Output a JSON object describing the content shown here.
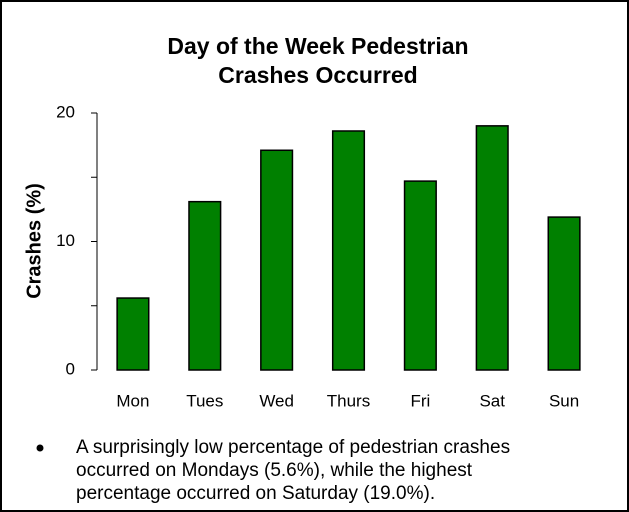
{
  "chart_data": {
    "type": "bar",
    "title_lines": [
      "Day of the Week Pedestrian",
      "Crashes Occurred"
    ],
    "y_label": "Crashes (%)",
    "categories": [
      "Mon",
      "Tues",
      "Wed",
      "Thurs",
      "Fri",
      "Sat",
      "Sun"
    ],
    "values": [
      5.6,
      13.1,
      17.1,
      18.6,
      14.7,
      19.0,
      11.9
    ],
    "color": "#008000",
    "ylim": [
      0,
      20
    ],
    "yticks": [
      0,
      10,
      20
    ],
    "minor_yticks": [
      5,
      15
    ],
    "grid": false,
    "bullet_lines": [
      "A surprisingly low percentage of pedestrian crashes",
      "occurred on Mondays (5.6%), while the highest",
      "percentage occurred on Saturday (19.0%)."
    ]
  }
}
